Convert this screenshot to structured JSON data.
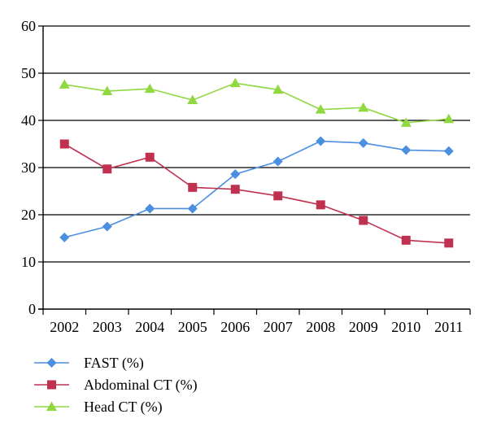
{
  "chart_data": {
    "type": "line",
    "categories": [
      "2002",
      "2003",
      "2004",
      "2005",
      "2006",
      "2007",
      "2008",
      "2009",
      "2010",
      "2011"
    ],
    "ylim": [
      0,
      60
    ],
    "yticks": [
      0,
      10,
      20,
      30,
      40,
      50,
      60
    ],
    "grid": "horizontal",
    "legend_position": "bottom-left",
    "series": [
      {
        "name": "FAST (%)",
        "color": "#4a8fe0",
        "marker": "diamond",
        "values": [
          15.2,
          17.5,
          21.3,
          21.3,
          28.6,
          31.3,
          35.6,
          35.2,
          33.7,
          33.5
        ]
      },
      {
        "name": "Abdominal CT (%)",
        "color": "#c0304f",
        "marker": "square",
        "values": [
          35.0,
          29.7,
          32.2,
          25.8,
          25.4,
          24.0,
          22.1,
          18.8,
          14.6,
          14.0
        ]
      },
      {
        "name": "Head CT (%)",
        "color": "#8fd840",
        "marker": "triangle",
        "values": [
          47.6,
          46.2,
          46.7,
          44.3,
          47.9,
          46.5,
          42.3,
          42.7,
          39.5,
          40.3
        ]
      }
    ]
  }
}
